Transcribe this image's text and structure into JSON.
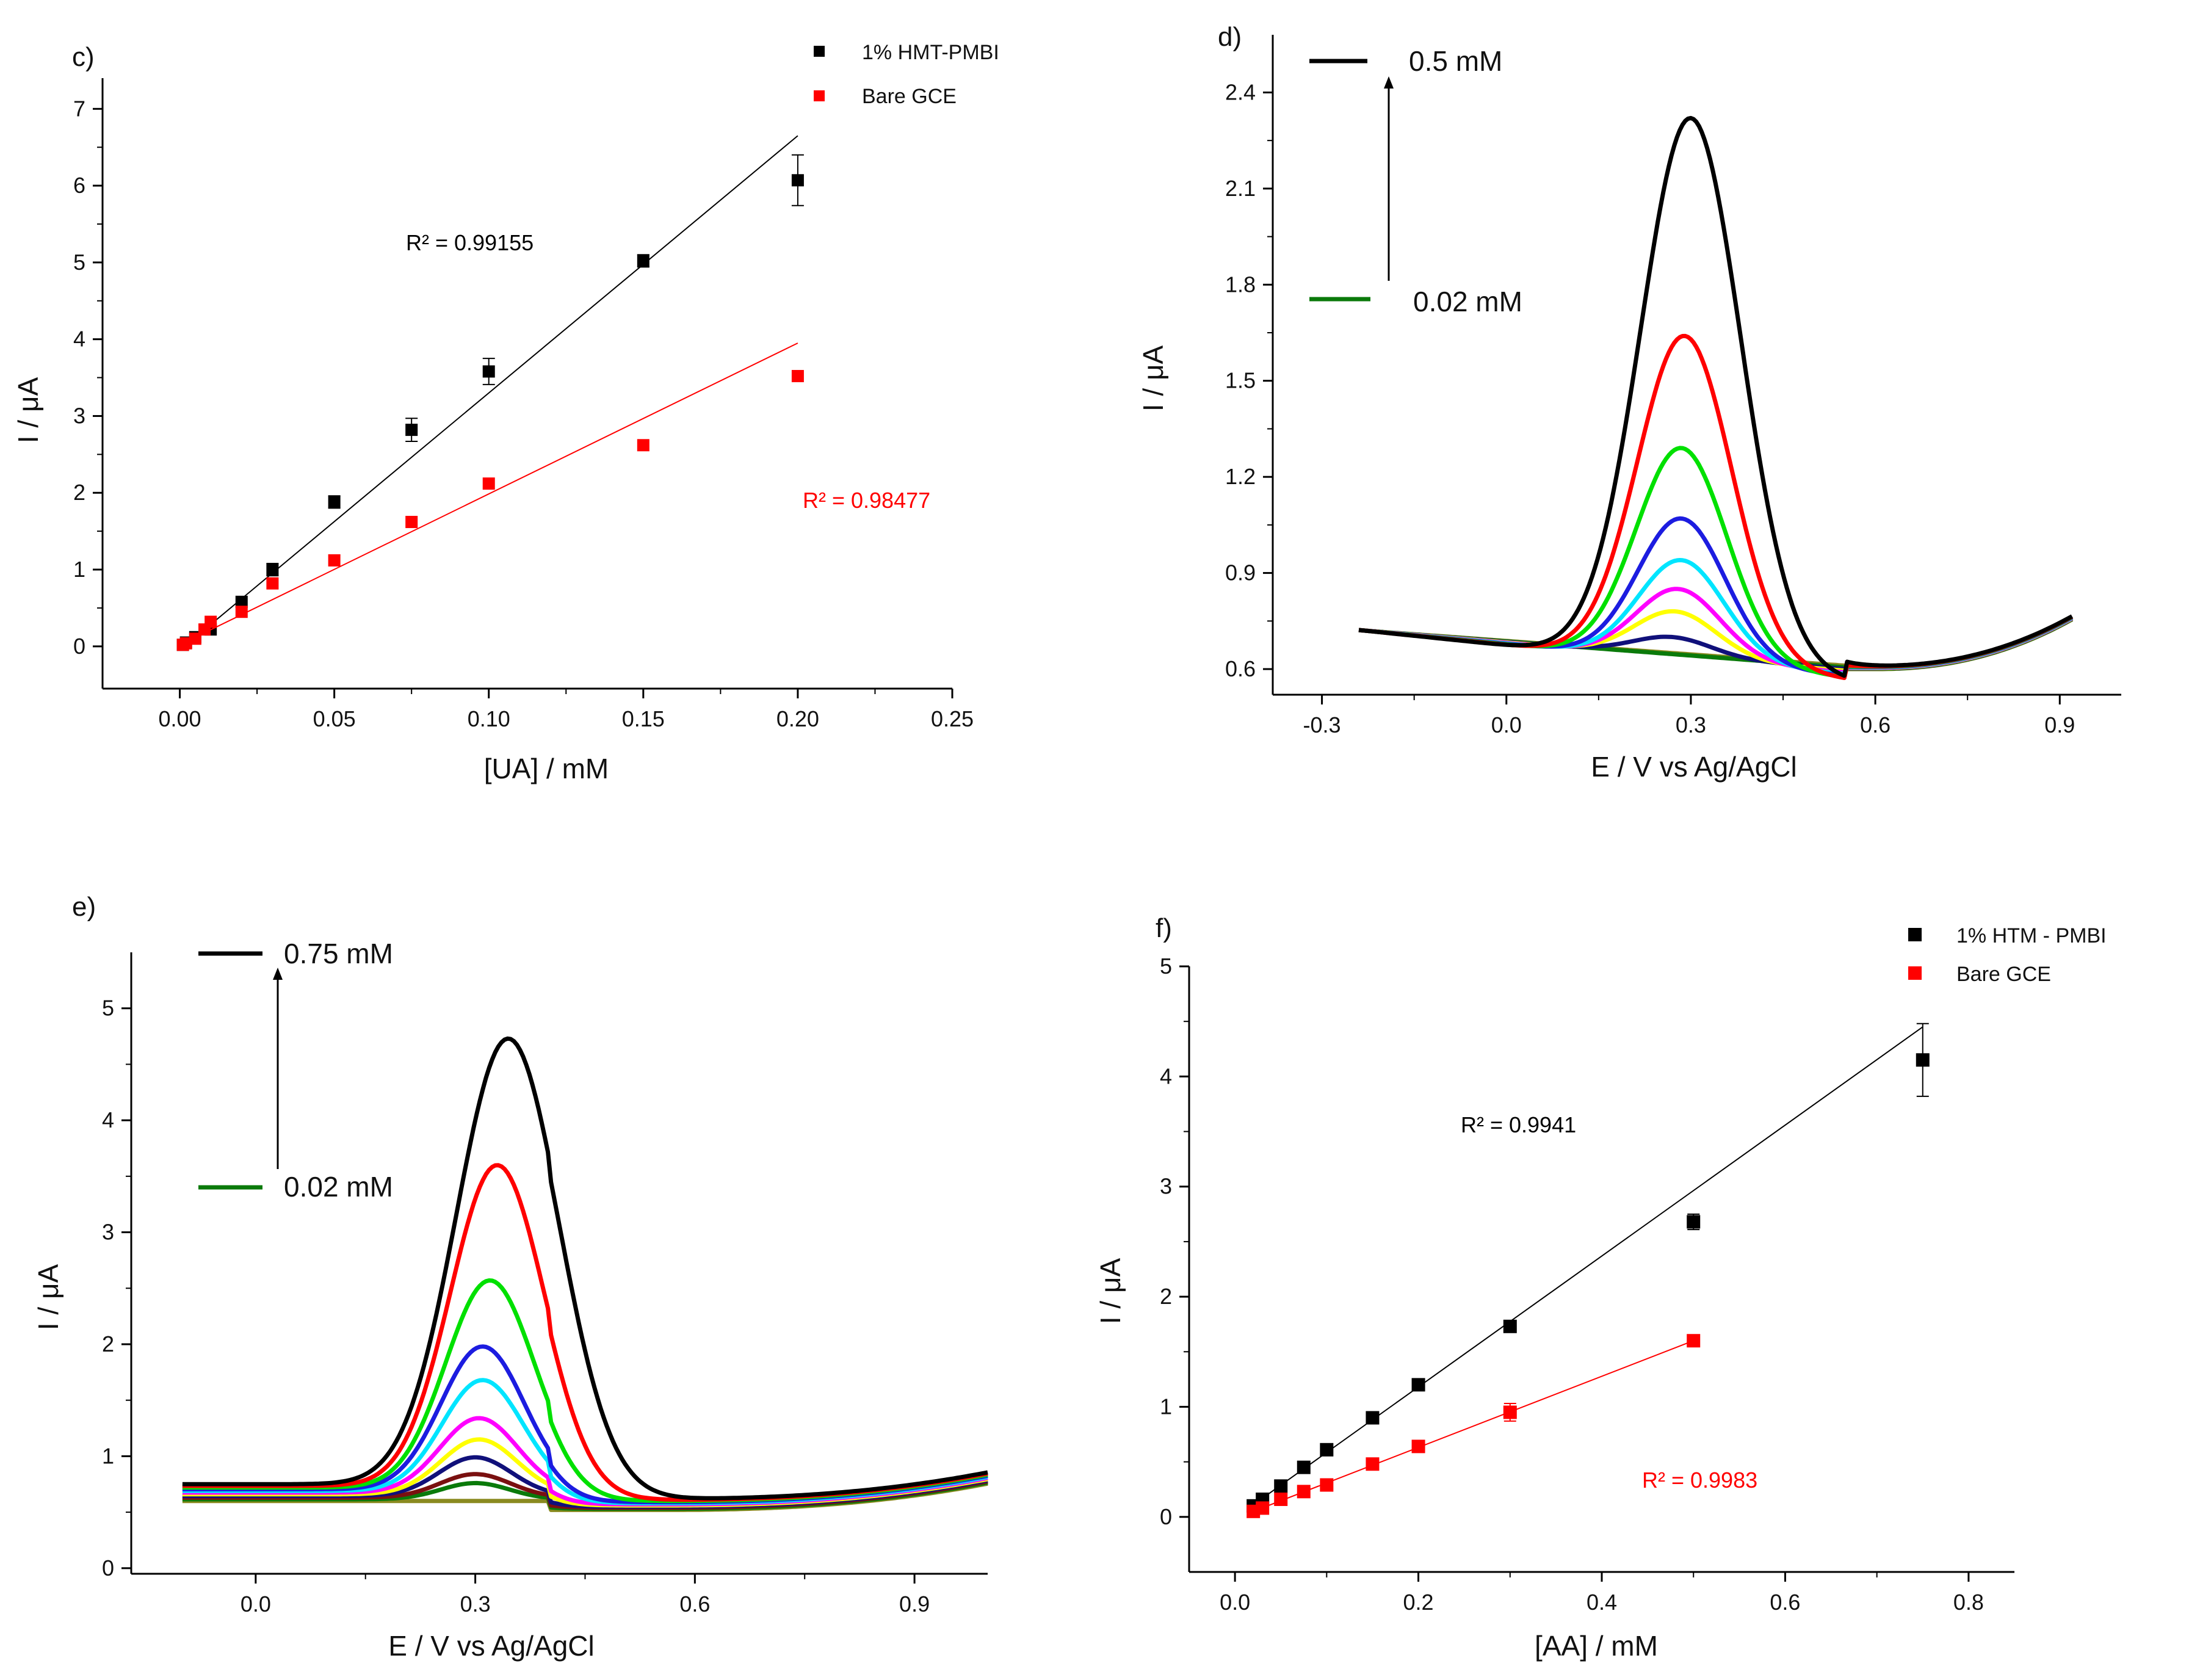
{
  "chart_data": [
    {
      "panel": "c)",
      "type": "scatter",
      "xlabel": "[UA] / mM",
      "ylabel": "I / μA",
      "xlim": [
        -0.025,
        0.25
      ],
      "ylim": [
        -0.55,
        7.4
      ],
      "xticks": [
        0.0,
        0.05,
        0.1,
        0.15,
        0.2,
        0.25
      ],
      "xtick_labels": [
        "0.00",
        "0.05",
        "0.10",
        "0.15",
        "0.20",
        "0.25"
      ],
      "yticks": [
        0,
        1,
        2,
        3,
        4,
        5,
        6,
        7
      ],
      "ytick_labels": [
        "0",
        "1",
        "2",
        "3",
        "4",
        "5",
        "6",
        "7"
      ],
      "legend_position": "top-right",
      "series": [
        {
          "name": "1% HMT-PMBI",
          "color": "#000000",
          "x": [
            0.001,
            0.002,
            0.005,
            0.01,
            0.02,
            0.03,
            0.05,
            0.075,
            0.1,
            0.15,
            0.2
          ],
          "y": [
            0.02,
            0.05,
            0.12,
            0.22,
            0.58,
            1.0,
            1.88,
            2.82,
            3.58,
            5.02,
            6.07
          ],
          "err": [
            0,
            0,
            0,
            0,
            0,
            0.08,
            0.08,
            0.15,
            0.17,
            0.08,
            0.33
          ],
          "fit": {
            "x": [
              0.0,
              0.2
            ],
            "y": [
              -0.05,
              6.65
            ]
          },
          "r2_text": "R² = 0.99155"
        },
        {
          "name": "Bare GCE",
          "color": "#ff0000",
          "x": [
            0.001,
            0.002,
            0.005,
            0.008,
            0.01,
            0.02,
            0.03,
            0.05,
            0.075,
            0.1,
            0.15,
            0.2
          ],
          "y": [
            0.02,
            0.04,
            0.1,
            0.22,
            0.32,
            0.45,
            0.82,
            1.12,
            1.62,
            2.12,
            2.62,
            3.52
          ],
          "err": [],
          "fit": {
            "x": [
              0.0,
              0.2
            ],
            "y": [
              0.02,
              3.95
            ]
          },
          "r2_text": "R² = 0.98477"
        }
      ]
    },
    {
      "panel": "d)",
      "type": "line",
      "xlabel": "E / V vs Ag/AgCl",
      "ylabel": "I / μA",
      "xlim": [
        -0.38,
        1.0
      ],
      "ylim": [
        0.52,
        2.58
      ],
      "xticks": [
        -0.3,
        0.0,
        0.3,
        0.6,
        0.9
      ],
      "xtick_labels": [
        "-0.3",
        "0.0",
        "0.3",
        "0.6",
        "0.9"
      ],
      "yticks": [
        0.6,
        0.9,
        1.2,
        1.5,
        1.8,
        2.1,
        2.4
      ],
      "ytick_labels": [
        "0.6",
        "0.9",
        "1.2",
        "1.5",
        "1.8",
        "2.1",
        "2.4"
      ],
      "conc_high": "0.5 mM",
      "conc_low": "0.02 mM",
      "series": [
        {
          "name": "0.5 mM",
          "color": "#000000",
          "peak_x": 0.3,
          "peak_y": 2.32,
          "width": 0.115
        },
        {
          "name": "",
          "color": "#ff0000",
          "peak_x": 0.29,
          "peak_y": 1.64,
          "width": 0.108
        },
        {
          "name": "",
          "color": "#00e000",
          "peak_x": 0.285,
          "peak_y": 1.29,
          "width": 0.104
        },
        {
          "name": "",
          "color": "#1c1ce0",
          "peak_x": 0.285,
          "peak_y": 1.07,
          "width": 0.1
        },
        {
          "name": "",
          "color": "#00e5ff",
          "peak_x": 0.285,
          "peak_y": 0.94,
          "width": 0.098
        },
        {
          "name": "",
          "color": "#ff00ff",
          "peak_x": 0.28,
          "peak_y": 0.85,
          "width": 0.096
        },
        {
          "name": "",
          "color": "#ffff00",
          "peak_x": 0.275,
          "peak_y": 0.78,
          "width": 0.094
        },
        {
          "name": "",
          "color": "#10107a",
          "peak_x": 0.27,
          "peak_y": 0.7,
          "width": 0.09
        },
        {
          "name": "0.02 mM",
          "color": "#0a7a0a",
          "peak_x": 0.26,
          "peak_y": 0.645,
          "width": 0.085
        },
        {
          "name": "",
          "color": "#8a8a20",
          "peak_x": 0.25,
          "peak_y": 0.59,
          "width": 0.08
        }
      ]
    },
    {
      "panel": "e)",
      "type": "line",
      "xlabel": "E / V vs Ag/AgCl",
      "ylabel": "I / μA",
      "xlim": [
        -0.17,
        1.0
      ],
      "ylim": [
        -0.05,
        5.5
      ],
      "xticks": [
        0.0,
        0.3,
        0.6,
        0.9
      ],
      "xtick_labels": [
        "0.0",
        "0.3",
        "0.6",
        "0.9"
      ],
      "yticks": [
        0,
        1,
        2,
        3,
        4,
        5
      ],
      "ytick_labels": [
        "0",
        "1",
        "2",
        "3",
        "4",
        "5"
      ],
      "conc_high": "0.75 mM",
      "conc_low": "0.02 mM",
      "series": [
        {
          "name": "0.75 mM",
          "color": "#000000",
          "peak_x": 0.345,
          "peak_y": 4.73,
          "width": 0.1
        },
        {
          "name": "",
          "color": "#ff0000",
          "peak_x": 0.33,
          "peak_y": 3.6,
          "width": 0.09
        },
        {
          "name": "",
          "color": "#00e000",
          "peak_x": 0.32,
          "peak_y": 2.57,
          "width": 0.085
        },
        {
          "name": "",
          "color": "#1c1ce0",
          "peak_x": 0.31,
          "peak_y": 1.98,
          "width": 0.08
        },
        {
          "name": "",
          "color": "#00e5ff",
          "peak_x": 0.31,
          "peak_y": 1.68,
          "width": 0.078
        },
        {
          "name": "",
          "color": "#ff00ff",
          "peak_x": 0.305,
          "peak_y": 1.34,
          "width": 0.075
        },
        {
          "name": "",
          "color": "#ffff00",
          "peak_x": 0.305,
          "peak_y": 1.15,
          "width": 0.073
        },
        {
          "name": "",
          "color": "#10107a",
          "peak_x": 0.3,
          "peak_y": 0.99,
          "width": 0.07
        },
        {
          "name": "",
          "color": "#7a1010",
          "peak_x": 0.3,
          "peak_y": 0.84,
          "width": 0.068
        },
        {
          "name": "0.02 mM",
          "color": "#0a7a0a",
          "peak_x": 0.3,
          "peak_y": 0.76,
          "width": 0.066
        },
        {
          "name": "",
          "color": "#8a8a20",
          "peak_x": 0.3,
          "peak_y": 0.55,
          "width": 0.06
        }
      ]
    },
    {
      "panel": "f)",
      "type": "scatter",
      "xlabel": "[AA] / mM",
      "ylabel": "I / μA",
      "xlim": [
        -0.05,
        0.85
      ],
      "ylim": [
        -0.5,
        5.0
      ],
      "xticks": [
        0.0,
        0.2,
        0.4,
        0.6,
        0.8
      ],
      "xtick_labels": [
        "0.0",
        "0.2",
        "0.4",
        "0.6",
        "0.8"
      ],
      "yticks": [
        0,
        1,
        2,
        3,
        4,
        5
      ],
      "ytick_labels": [
        "0",
        "1",
        "2",
        "3",
        "4",
        "5"
      ],
      "legend_position": "top-right",
      "series": [
        {
          "name": "1% HTM - PMBI",
          "color": "#000000",
          "x": [
            0.02,
            0.03,
            0.05,
            0.075,
            0.1,
            0.15,
            0.2,
            0.3,
            0.5,
            0.75
          ],
          "y": [
            0.1,
            0.16,
            0.28,
            0.45,
            0.61,
            0.9,
            1.2,
            1.73,
            2.68,
            4.15
          ],
          "err": [
            0,
            0,
            0,
            0,
            0,
            0,
            0,
            0.04,
            0.07,
            0.33
          ],
          "fit": {
            "x": [
              0.02,
              0.75
            ],
            "y": [
              0.11,
              4.45
            ]
          },
          "r2_text": "R² = 0.9941"
        },
        {
          "name": "Bare GCE",
          "color": "#ff0000",
          "x": [
            0.02,
            0.03,
            0.05,
            0.075,
            0.1,
            0.15,
            0.2,
            0.3,
            0.5
          ],
          "y": [
            0.05,
            0.08,
            0.16,
            0.23,
            0.29,
            0.48,
            0.64,
            0.95,
            1.6
          ],
          "err": [
            0,
            0,
            0,
            0,
            0,
            0,
            0,
            0.08,
            0
          ],
          "fit": {
            "x": [
              0.02,
              0.5
            ],
            "y": [
              0.05,
              1.6
            ]
          },
          "r2_text": "R² = 0.9983"
        }
      ]
    }
  ]
}
